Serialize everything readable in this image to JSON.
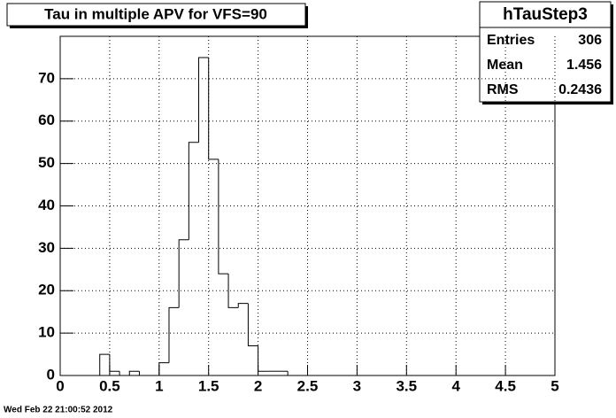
{
  "chart_data": {
    "type": "histogram",
    "title": "Tau in multiple APV for VFS=90",
    "bins": [
      0,
      0.1,
      0.2,
      0.3,
      0.4,
      0.5,
      0.6,
      0.7,
      0.8,
      0.9,
      1,
      1.1,
      1.2,
      1.3,
      1.4,
      1.5,
      1.6,
      1.7,
      1.8,
      1.9,
      2,
      2.1,
      2.2,
      2.3,
      2.4,
      2.5,
      2.6,
      2.7,
      2.8,
      2.9,
      3,
      3.1,
      3.2,
      3.3,
      3.4,
      3.5,
      3.6,
      3.7,
      3.8,
      3.9,
      4,
      4.1,
      4.2,
      4.3,
      4.4,
      4.5,
      4.6,
      4.7,
      4.8,
      4.9,
      5
    ],
    "values": [
      0,
      0,
      0,
      0,
      5,
      1,
      0,
      1,
      0,
      0,
      3,
      16,
      32,
      55,
      75,
      51,
      24,
      16,
      17,
      7,
      1,
      1,
      1,
      0,
      0,
      0,
      0,
      0,
      0,
      0,
      0,
      0,
      0,
      0,
      0,
      0,
      0,
      0,
      0,
      0,
      0,
      0,
      0,
      0,
      0,
      0,
      0,
      0,
      0,
      0
    ],
    "color": "#000000",
    "xlim": [
      0,
      5
    ],
    "xticks": [
      0,
      0.5,
      1,
      1.5,
      2,
      2.5,
      3,
      3.5,
      4,
      4.5,
      5
    ],
    "ylim": [
      0,
      80
    ],
    "yticks": [
      0,
      10,
      20,
      30,
      40,
      50,
      60,
      70
    ],
    "grid": true,
    "stats": {
      "name": "hTauStep3",
      "rows": [
        [
          "Entries",
          306
        ],
        [
          "Mean",
          1.456
        ],
        [
          "RMS",
          0.2436
        ]
      ]
    },
    "timestamp": "Wed Feb 22 21:00:52 2012"
  }
}
